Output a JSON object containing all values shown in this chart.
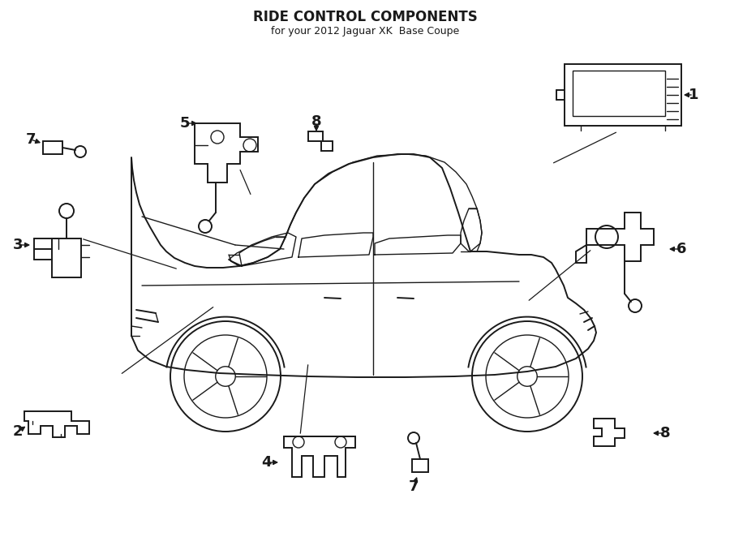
{
  "title": "RIDE CONTROL COMPONENTS",
  "subtitle": "for your 2012 Jaguar XK  Base Coupe",
  "background_color": "#ffffff",
  "line_color": "#1a1a1a",
  "title_fontsize": 12,
  "subtitle_fontsize": 9,
  "label_fontsize": 13
}
